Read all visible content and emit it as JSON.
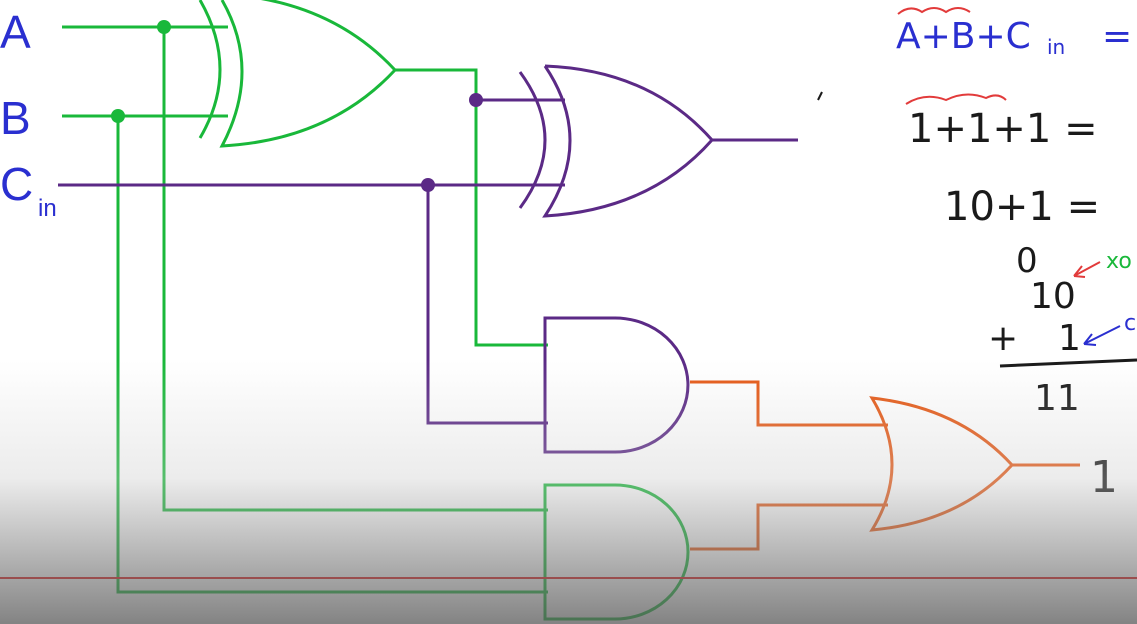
{
  "inputs": {
    "a": "A",
    "b": "B",
    "c": "C",
    "c_sub": "in"
  },
  "output": {
    "value": "1"
  },
  "notes": {
    "line1": "A+B+C",
    "line1_sub": "in",
    "line1_tail": "=",
    "line2": "1+1+1 =",
    "line3": "10+1 =",
    "sum_top": "0",
    "sum_top_note": "xo",
    "sum_mid": "10",
    "sum_plus": "+",
    "sum_bottom": "1",
    "sum_bottom_note": "c",
    "sum_result": "11"
  },
  "colors": {
    "green": "#19b83a",
    "purple": "#5b2a86",
    "orange": "#e65a17",
    "blue": "#2a2fd0",
    "ink": "#1a1a1a",
    "note_red": "#e23b3b",
    "guide_red": "#e21b1b"
  }
}
